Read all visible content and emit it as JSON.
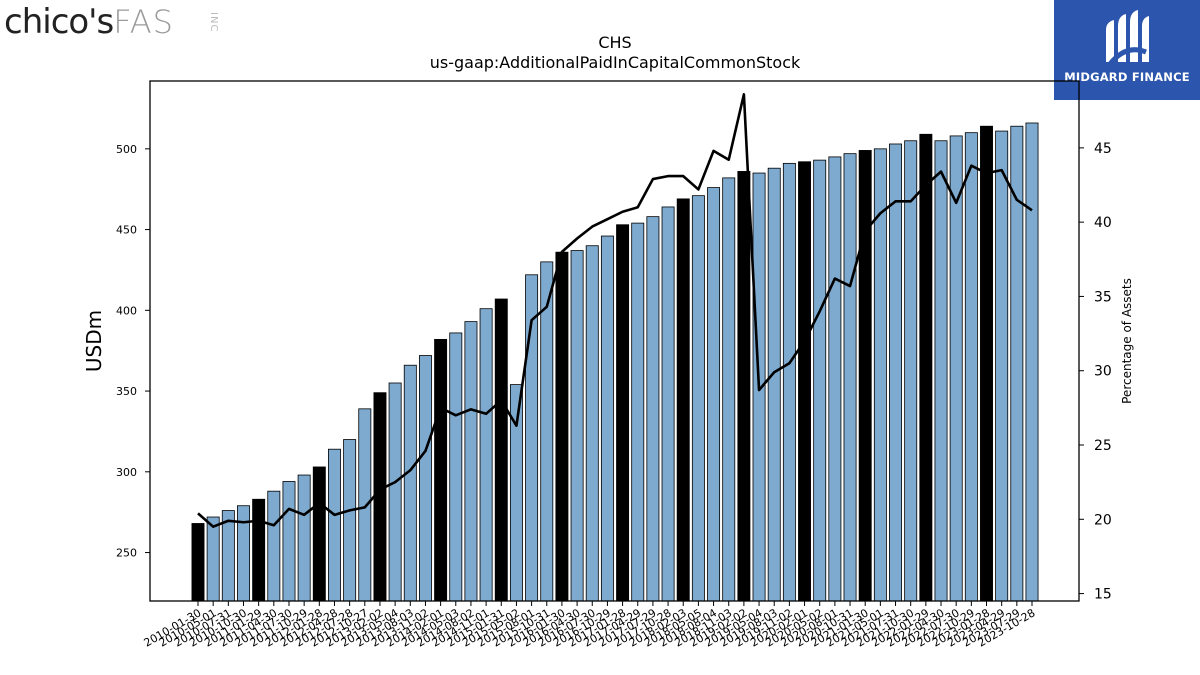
{
  "logos": {
    "brand_word_dark": "chico's",
    "brand_word_light": "FAS",
    "brand_word_suffix": "INC",
    "badge_name": "MIDGARD FINANCE"
  },
  "chart_data": {
    "type": "bar",
    "title": "CHS",
    "subtitle": "us-gaap:AdditionalPaidInCapitalCommonStock",
    "ylabel": "USDm",
    "y2label": "Percentage of Assets",
    "ylim": [
      220,
      542
    ],
    "y2lim": [
      14.5,
      49.5
    ],
    "yticks": [
      250,
      300,
      350,
      400,
      450,
      500
    ],
    "y2ticks": [
      15,
      20,
      25,
      30,
      35,
      40,
      45
    ],
    "colors": {
      "bar": "#7eaacf",
      "bar_highlight": "#000000",
      "line": "#000000"
    },
    "categories": [
      "2010-01-30",
      "2010-05-01",
      "2010-07-31",
      "2010-10-30",
      "2011-01-29",
      "2011-04-30",
      "2011-07-30",
      "2011-10-29",
      "2012-01-28",
      "2012-04-28",
      "2012-07-28",
      "2012-10-27",
      "2013-02-02",
      "2013-05-04",
      "2013-08-03",
      "2013-11-02",
      "2014-02-01",
      "2014-05-03",
      "2014-08-02",
      "2014-11-01",
      "2015-01-31",
      "2015-05-02",
      "2015-08-01",
      "2015-10-31",
      "2016-01-30",
      "2016-04-30",
      "2016-07-30",
      "2016-10-29",
      "2017-01-28",
      "2017-04-29",
      "2017-07-29",
      "2017-10-28",
      "2018-02-03",
      "2018-05-05",
      "2018-08-04",
      "2018-11-03",
      "2019-02-02",
      "2019-05-04",
      "2019-08-03",
      "2019-11-02",
      "2020-02-01",
      "2020-05-02",
      "2020-08-01",
      "2020-10-31",
      "2021-01-30",
      "2021-05-01",
      "2021-07-31",
      "2021-10-30",
      "2022-01-29",
      "2022-04-30",
      "2022-07-30",
      "2022-10-29",
      "2023-01-28",
      "2023-04-29",
      "2023-07-29",
      "2023-10-28"
    ],
    "tick_labels": [
      "2010-01-30",
      "2010-05-01",
      "2010-07-31",
      "2010-10-30",
      "2011-01-29",
      "2011-04-30",
      "2011-07-30",
      "2011-10-29",
      "2012-01-28",
      "2012-04-28",
      "2012-07-28",
      "2012-10-27",
      "2013-02-02",
      "2013-05-04",
      "2013-08-03",
      "2013-11-02",
      "2014-02-01",
      "2014-05-03",
      "2014-08-02",
      "2014-11-01",
      "2015-01-31",
      "2015-05-02",
      "2015-08-01",
      "2015-10-31",
      "2016-01-30",
      "2016-04-30",
      "2016-07-30",
      "2016-10-29",
      "2017-01-28",
      "2017-04-29",
      "2017-07-29",
      "2017-10-28",
      "2018-02-03",
      "2018-05-05",
      "2018-08-04",
      "2018-11-03",
      "2019-02-02",
      "2019-05-04",
      "2019-08-03",
      "2019-11-02",
      "2020-02-01",
      "2020-05-02",
      "2020-08-01",
      "2020-10-31",
      "2021-01-30",
      "2021-05-01",
      "2021-07-31",
      "2021-10-30",
      "2022-01-29",
      "2022-04-30",
      "2022-07-30",
      "2022-10-29",
      "2023-01-28",
      "2023-04-29",
      "2023-07-29",
      "2023-10-28"
    ],
    "values": [
      268,
      272,
      276,
      279,
      283,
      288,
      294,
      298,
      303,
      314,
      320,
      339,
      349,
      355,
      366,
      372,
      382,
      386,
      393,
      401,
      407,
      354,
      422,
      430,
      436,
      437,
      440,
      446,
      453,
      454,
      458,
      464,
      469,
      471,
      476,
      482,
      486,
      485,
      488,
      491,
      492,
      493,
      495,
      497,
      499,
      500,
      503,
      505,
      509,
      505,
      508,
      510,
      514,
      511,
      514,
      516
    ],
    "highlight": [
      true,
      false,
      false,
      false,
      true,
      false,
      false,
      false,
      true,
      false,
      false,
      false,
      true,
      false,
      false,
      false,
      true,
      false,
      false,
      false,
      true,
      false,
      false,
      false,
      true,
      false,
      false,
      false,
      true,
      false,
      false,
      false,
      true,
      false,
      false,
      false,
      true,
      false,
      false,
      false,
      true,
      false,
      false,
      false,
      true,
      false,
      false,
      false,
      true,
      false,
      false,
      false,
      true,
      false,
      false,
      false
    ],
    "series": [
      {
        "name": "Percentage of Assets",
        "axis": "right",
        "values": [
          20.4,
          19.5,
          19.9,
          19.8,
          19.9,
          19.6,
          20.7,
          20.3,
          21.1,
          20.3,
          20.6,
          20.8,
          22.0,
          22.5,
          23.3,
          24.6,
          27.5,
          27.0,
          27.4,
          27.1,
          28.0,
          26.3,
          33.4,
          34.3,
          38.0,
          38.9,
          39.7,
          40.2,
          40.7,
          41.0,
          42.9,
          43.1,
          43.1,
          42.2,
          44.8,
          44.2,
          48.6,
          28.7,
          29.9,
          30.5,
          32.0,
          34.0,
          36.2,
          35.7,
          39.4,
          40.6,
          41.4,
          41.4,
          42.5,
          43.4,
          41.3,
          43.8,
          43.3,
          43.5,
          41.5,
          40.8
        ]
      }
    ]
  }
}
